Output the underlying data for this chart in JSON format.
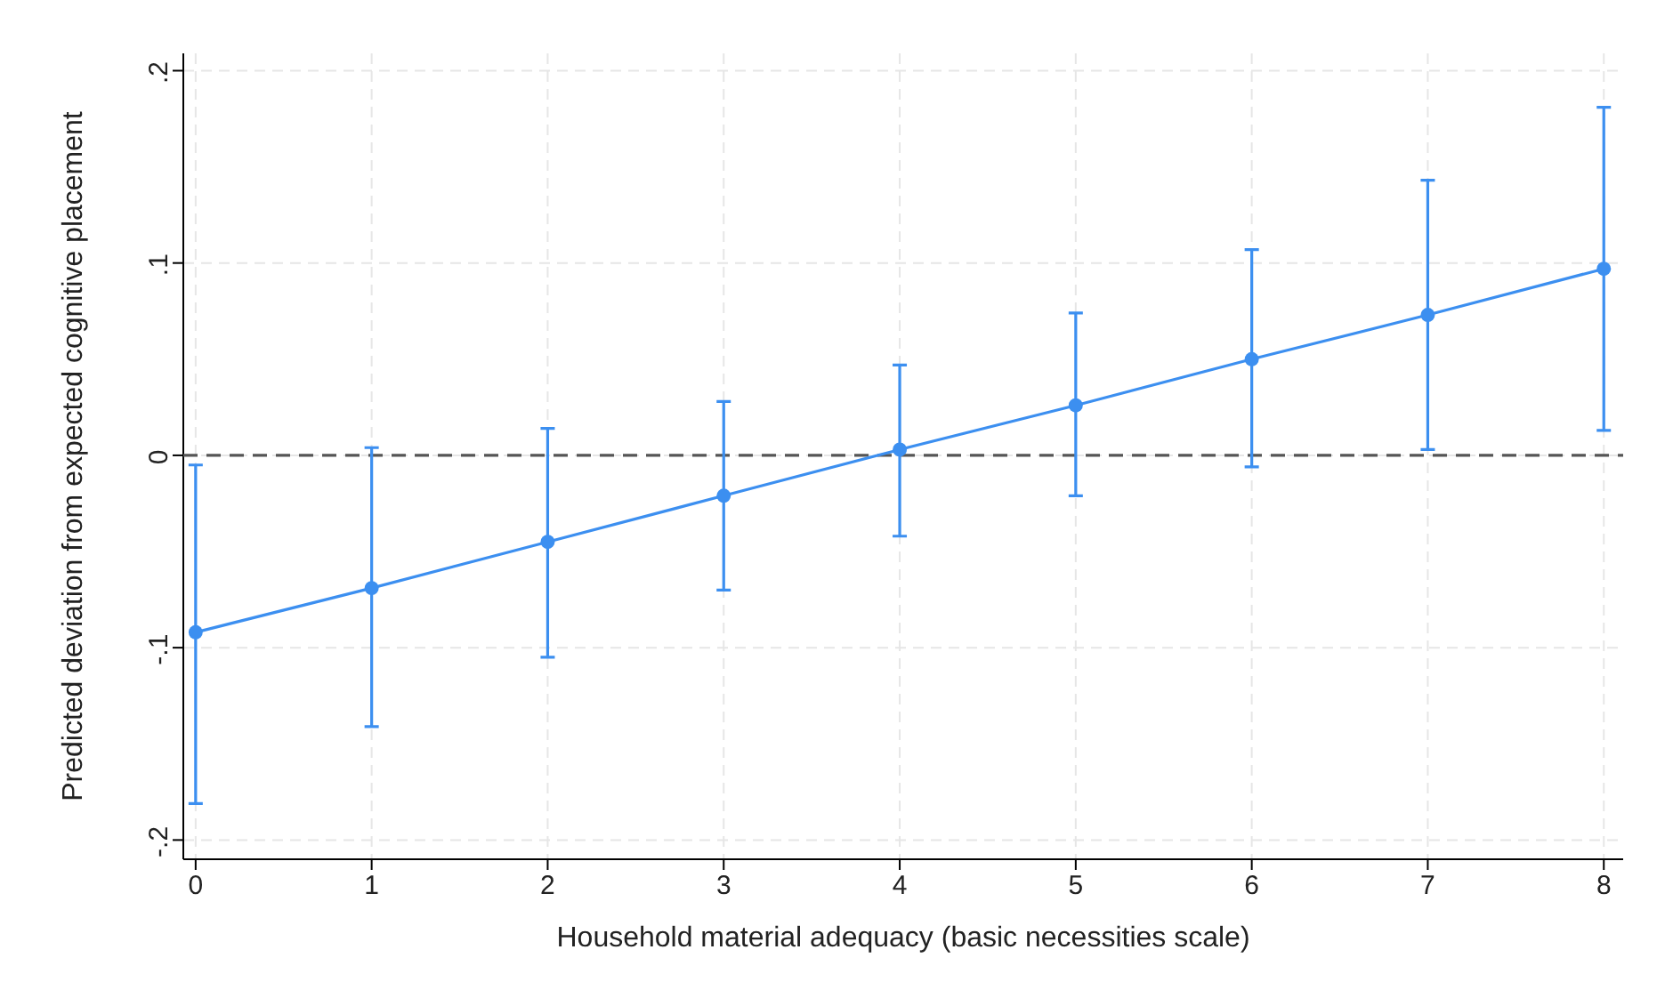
{
  "chart_data": {
    "type": "line",
    "xlabel": "Household material adequacy (basic necessities scale)",
    "ylabel": "Predicted deviation from expected cognitive placement",
    "x": [
      0,
      1,
      2,
      3,
      4,
      5,
      6,
      7,
      8
    ],
    "series": [
      {
        "color": "#3c8ff0",
        "values": [
          -0.092,
          -0.069,
          -0.045,
          -0.021,
          0.003,
          0.026,
          0.05,
          0.073,
          0.097
        ],
        "errors": [
          [
            -0.181,
            -0.005
          ],
          [
            -0.141,
            0.004
          ],
          [
            -0.105,
            0.014
          ],
          [
            -0.07,
            0.028
          ],
          [
            -0.042,
            0.047
          ],
          [
            -0.021,
            0.074
          ],
          [
            -0.006,
            0.107
          ],
          [
            0.003,
            0.143
          ],
          [
            0.013,
            0.181
          ]
        ]
      }
    ],
    "xlim": [
      -0.07,
      8.11
    ],
    "xticks": [
      0,
      1,
      2,
      3,
      4,
      5,
      6,
      7,
      8
    ],
    "ylim": [
      -0.21,
      0.209
    ],
    "yticks": [
      {
        "value": -0.2,
        "label": "-.2"
      },
      {
        "value": -0.1,
        "label": "-.1"
      },
      {
        "value": 0,
        "label": "0"
      },
      {
        "value": 0.1,
        "label": ".1"
      },
      {
        "value": 0.2,
        "label": ".2"
      }
    ],
    "grid": true,
    "marker": "circle",
    "line_style": "solid",
    "ref_lines": [
      {
        "axis": "y",
        "value": 0,
        "color": "#555555",
        "line_style": "dashed"
      }
    ]
  }
}
